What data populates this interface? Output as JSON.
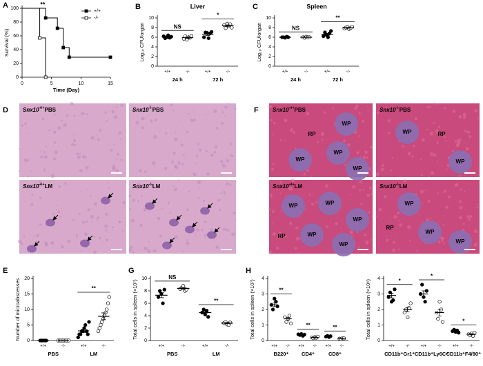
{
  "chart_data": [
    {
      "type": "survival",
      "panel": "A",
      "ylabel": "Survival (%)",
      "xlabel": "Time (Day)",
      "xlim": [
        0,
        15
      ],
      "xticks": [
        0,
        5,
        10,
        15
      ],
      "ylim": [
        0,
        100
      ],
      "yticks": [
        0,
        20,
        40,
        60,
        80,
        100
      ],
      "annotation": "**",
      "legend_position": "upper right",
      "series": [
        {
          "name": "+/+",
          "color": "#000000",
          "marker": "filled",
          "x": [
            0,
            4,
            6,
            7,
            8,
            15
          ],
          "values": [
            100,
            86,
            71,
            43,
            29,
            29
          ]
        },
        {
          "name": "-/-",
          "color": "#000000",
          "marker": "open",
          "x": [
            0,
            3,
            4
          ],
          "values": [
            100,
            57,
            0
          ]
        }
      ]
    },
    {
      "type": "dot",
      "panel": "B",
      "title": "Liver",
      "ylabel": "Log₁₀ CFU/organ",
      "ylim": [
        0,
        10
      ],
      "yticks": [
        0,
        2,
        4,
        6,
        8,
        10
      ],
      "categories": [
        "+/+",
        "-/-",
        "+/+",
        "-/-"
      ],
      "fills": [
        "#000000",
        "#ffffff",
        "#000000",
        "#ffffff"
      ],
      "groups": [
        "24 h",
        "72 h"
      ],
      "significance": [
        "NS",
        "*"
      ],
      "points": [
        [
          6.2,
          5.8,
          6.0,
          6.4,
          5.9,
          6.1
        ],
        [
          5.7,
          6.2,
          5.5,
          6.0,
          5.9,
          6.3
        ],
        [
          6.0,
          7.0,
          6.9,
          5.8,
          6.8,
          7.1
        ],
        [
          8.5,
          7.9,
          8.8,
          8.3,
          8.7,
          8.0
        ]
      ],
      "means": [
        6.1,
        5.9,
        6.6,
        8.4
      ],
      "sems": [
        0.1,
        0.13,
        0.23,
        0.15
      ]
    },
    {
      "type": "dot",
      "panel": "C",
      "title": "Spleen",
      "ylabel": "Log₁₀ CFU/organ",
      "ylim": [
        0,
        10
      ],
      "yticks": [
        0,
        2,
        4,
        6,
        8,
        10
      ],
      "categories": [
        "+/+",
        "-/-",
        "+/+",
        "-/-"
      ],
      "fills": [
        "#000000",
        "#ffffff",
        "#000000",
        "#ffffff"
      ],
      "groups": [
        "24 h",
        "72 h"
      ],
      "significance": [
        "NS",
        "**"
      ],
      "points": [
        [
          6.0,
          6.0,
          5.9,
          6.1,
          6.0
        ],
        [
          6.0,
          5.9,
          6.1,
          6.0,
          6.0
        ],
        [
          6.2,
          7.0,
          6.5,
          6.0,
          6.8,
          7.3
        ],
        [
          7.8,
          8.0,
          8.1,
          7.7,
          7.9,
          8.2
        ]
      ],
      "means": [
        6.0,
        6.0,
        6.6,
        7.95
      ],
      "sems": [
        0.03,
        0.03,
        0.2,
        0.08
      ]
    },
    {
      "type": "dot",
      "panel": "E",
      "ylabel": "Number of microabscesses",
      "ylim": [
        0,
        20
      ],
      "yticks": [
        0,
        5,
        10,
        15,
        20
      ],
      "categories": [
        "+/+",
        "-/-",
        "+/+",
        "-/-"
      ],
      "fills": [
        "#000000",
        "#ffffff",
        "#000000",
        "#ffffff"
      ],
      "groups": [
        "PBS",
        "LM"
      ],
      "significance": [
        null,
        "**"
      ],
      "points": [
        [
          0,
          0,
          0,
          0,
          0
        ],
        [
          0,
          0,
          0,
          0,
          0,
          0,
          0,
          0
        ],
        [
          1,
          2,
          2,
          3,
          3,
          4,
          5,
          3,
          2,
          6
        ],
        [
          3,
          4,
          5,
          6,
          7,
          8,
          9,
          10,
          12,
          14
        ]
      ],
      "means": [
        0,
        0,
        3.1,
        7.8
      ],
      "sems": [
        0,
        0,
        0.5,
        1.1
      ]
    },
    {
      "type": "dot",
      "panel": "G",
      "ylabel": "Total cells in spleen (×10⁷)",
      "ylim": [
        0,
        10
      ],
      "yticks": [
        0,
        2,
        4,
        6,
        8,
        10
      ],
      "categories": [
        "+/+",
        "-/-",
        "+/+",
        "-/-"
      ],
      "fills": [
        "#000000",
        "#ffffff",
        "#000000",
        "#ffffff"
      ],
      "groups": [
        "PBS",
        "LM"
      ],
      "significance": [
        "NS",
        "**"
      ],
      "points": [
        [
          7.0,
          8.0,
          7.5,
          6.0,
          8.2
        ],
        [
          8.3,
          8.5,
          8.8,
          8.0,
          8.2
        ],
        [
          4.5,
          5.0,
          4.2,
          4.8,
          3.8
        ],
        [
          2.8,
          3.0,
          2.6,
          2.5,
          2.9
        ]
      ],
      "means": [
        7.3,
        8.4,
        4.5,
        2.8
      ],
      "sems": [
        0.4,
        0.14,
        0.2,
        0.1
      ]
    },
    {
      "type": "dot",
      "panel": "H",
      "ylabel": "Total cells in spleen (×10⁷)",
      "ylim": [
        0,
        4
      ],
      "yticks": [
        0,
        1,
        2,
        3,
        4
      ],
      "categories": [
        "+/+",
        "-/-",
        "+/+",
        "-/-",
        "+/+",
        "-/-"
      ],
      "fills": [
        "#000000",
        "#ffffff",
        "#000000",
        "#ffffff",
        "#000000",
        "#ffffff"
      ],
      "groups": [
        "B220⁺",
        "CD4⁺",
        "CD8⁺"
      ],
      "significance": [
        "**",
        "**",
        "**"
      ],
      "points": [
        [
          2.3,
          2.0,
          2.7,
          2.5,
          2.2
        ],
        [
          1.5,
          1.2,
          1.4,
          1.6,
          1.1
        ],
        [
          0.4,
          0.35,
          0.42,
          0.3,
          0.38
        ],
        [
          0.2,
          0.15,
          0.22,
          0.18,
          0.25
        ],
        [
          0.25,
          0.3,
          0.22,
          0.28
        ],
        [
          0.12,
          0.1,
          0.15,
          0.14
        ]
      ],
      "means": [
        2.3,
        1.4,
        0.37,
        0.2,
        0.26,
        0.13
      ],
      "sems": [
        0.12,
        0.1,
        0.02,
        0.02,
        0.02,
        0.01
      ]
    },
    {
      "type": "dot",
      "ylabel": "Total cells in spleen (×10⁶)",
      "ylim": [
        0,
        4
      ],
      "yticks": [
        0,
        1,
        2,
        3,
        4
      ],
      "categories": [
        "+/+",
        "-/-",
        "+/+",
        "-/-",
        "+/+",
        "-/-"
      ],
      "fills": [
        "#000000",
        "#ffffff",
        "#000000",
        "#ffffff",
        "#000000",
        "#ffffff"
      ],
      "groups": [
        "CD11b⁺Gr1⁺",
        "CD11b⁺Ly6C⁺",
        "CD11b⁺F4/80⁺"
      ],
      "significance": [
        "*",
        "*",
        "*"
      ],
      "points": [
        [
          2.8,
          3.1,
          2.5,
          2.6,
          3.3
        ],
        [
          1.8,
          2.0,
          1.5,
          2.1,
          2.4
        ],
        [
          3.0,
          3.6,
          2.8,
          2.5,
          3.2
        ],
        [
          1.8,
          1.4,
          2.5,
          2.0,
          1.2
        ],
        [
          0.6,
          0.7,
          0.55,
          0.65,
          0.5
        ],
        [
          0.4,
          0.35,
          0.45,
          0.3,
          0.5
        ]
      ],
      "means": [
        2.9,
        2.0,
        3.0,
        1.8,
        0.6,
        0.4
      ],
      "sems": [
        0.15,
        0.15,
        0.2,
        0.22,
        0.04,
        0.04
      ]
    }
  ],
  "micrographs": [
    {
      "panel": "D",
      "tiles": [
        {
          "gene": "Snx10",
          "genotype": "+/+",
          "treatment": "PBS",
          "regions": []
        },
        {
          "gene": "Snx10",
          "genotype": "-/-",
          "treatment": "PBS",
          "regions": []
        },
        {
          "gene": "Snx10",
          "genotype": "+/+",
          "treatment": "LM",
          "regions": []
        },
        {
          "gene": "Snx10",
          "genotype": "-/-",
          "treatment": "LM",
          "regions": []
        }
      ]
    },
    {
      "panel": "F",
      "tiles": [
        {
          "gene": "Snx10",
          "genotype": "+/+",
          "treatment": "PBS",
          "regions": [
            "WP",
            "RP",
            "WP",
            "WP",
            "WP"
          ]
        },
        {
          "gene": "Snx10",
          "genotype": "-/-",
          "treatment": "PBS",
          "regions": [
            "WP",
            "RP",
            "WP"
          ]
        },
        {
          "gene": "Snx10",
          "genotype": "+/+",
          "treatment": "LM",
          "regions": [
            "WP",
            "WP",
            "RP",
            "WP",
            "WP",
            "WP"
          ]
        },
        {
          "gene": "Snx10",
          "genotype": "-/-",
          "treatment": "LM",
          "regions": [
            "WP",
            "RP",
            "WP",
            "WP"
          ]
        }
      ]
    }
  ]
}
